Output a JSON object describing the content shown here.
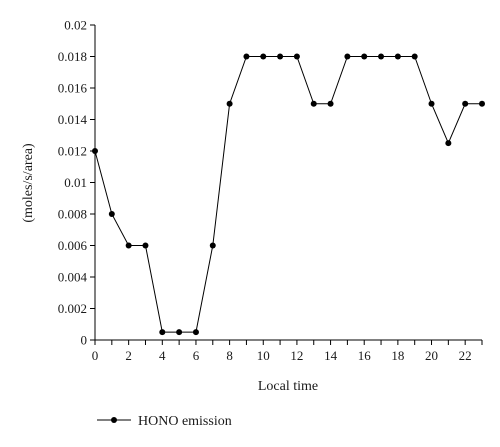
{
  "chart_data": {
    "type": "line",
    "title": "",
    "xlabel": "Local time",
    "ylabel": "(moles/s/area)",
    "xlim": [
      0,
      23
    ],
    "ylim": [
      0,
      0.02
    ],
    "x_ticks": [
      0,
      2,
      4,
      6,
      8,
      10,
      12,
      14,
      16,
      18,
      20,
      22
    ],
    "x_tick_labels": [
      "0",
      "2",
      "4",
      "6",
      "8",
      "10",
      "12",
      "14",
      "16",
      "18",
      "20",
      "22"
    ],
    "y_ticks": [
      0,
      0.002,
      0.004,
      0.006,
      0.008,
      0.01,
      0.012,
      0.014,
      0.016,
      0.018,
      0.02
    ],
    "y_tick_labels": [
      "0",
      "0.002",
      "0.004",
      "0.006",
      "0.008",
      "0.01",
      "0.012",
      "0.014",
      "0.016",
      "0.018",
      "0.02"
    ],
    "grid": false,
    "legend_position": "bottom-left",
    "series": [
      {
        "name": "HONO emission",
        "color": "#000000",
        "marker": "circle",
        "x": [
          0,
          1,
          2,
          3,
          4,
          5,
          6,
          7,
          8,
          9,
          10,
          11,
          12,
          13,
          14,
          15,
          16,
          17,
          18,
          19,
          20,
          21,
          22,
          23
        ],
        "y": [
          0.012,
          0.008,
          0.006,
          0.006,
          0.0005,
          0.0005,
          0.0005,
          0.006,
          0.015,
          0.018,
          0.018,
          0.018,
          0.018,
          0.015,
          0.015,
          0.018,
          0.018,
          0.018,
          0.018,
          0.018,
          0.015,
          0.0125,
          0.015,
          0.015
        ]
      }
    ]
  }
}
